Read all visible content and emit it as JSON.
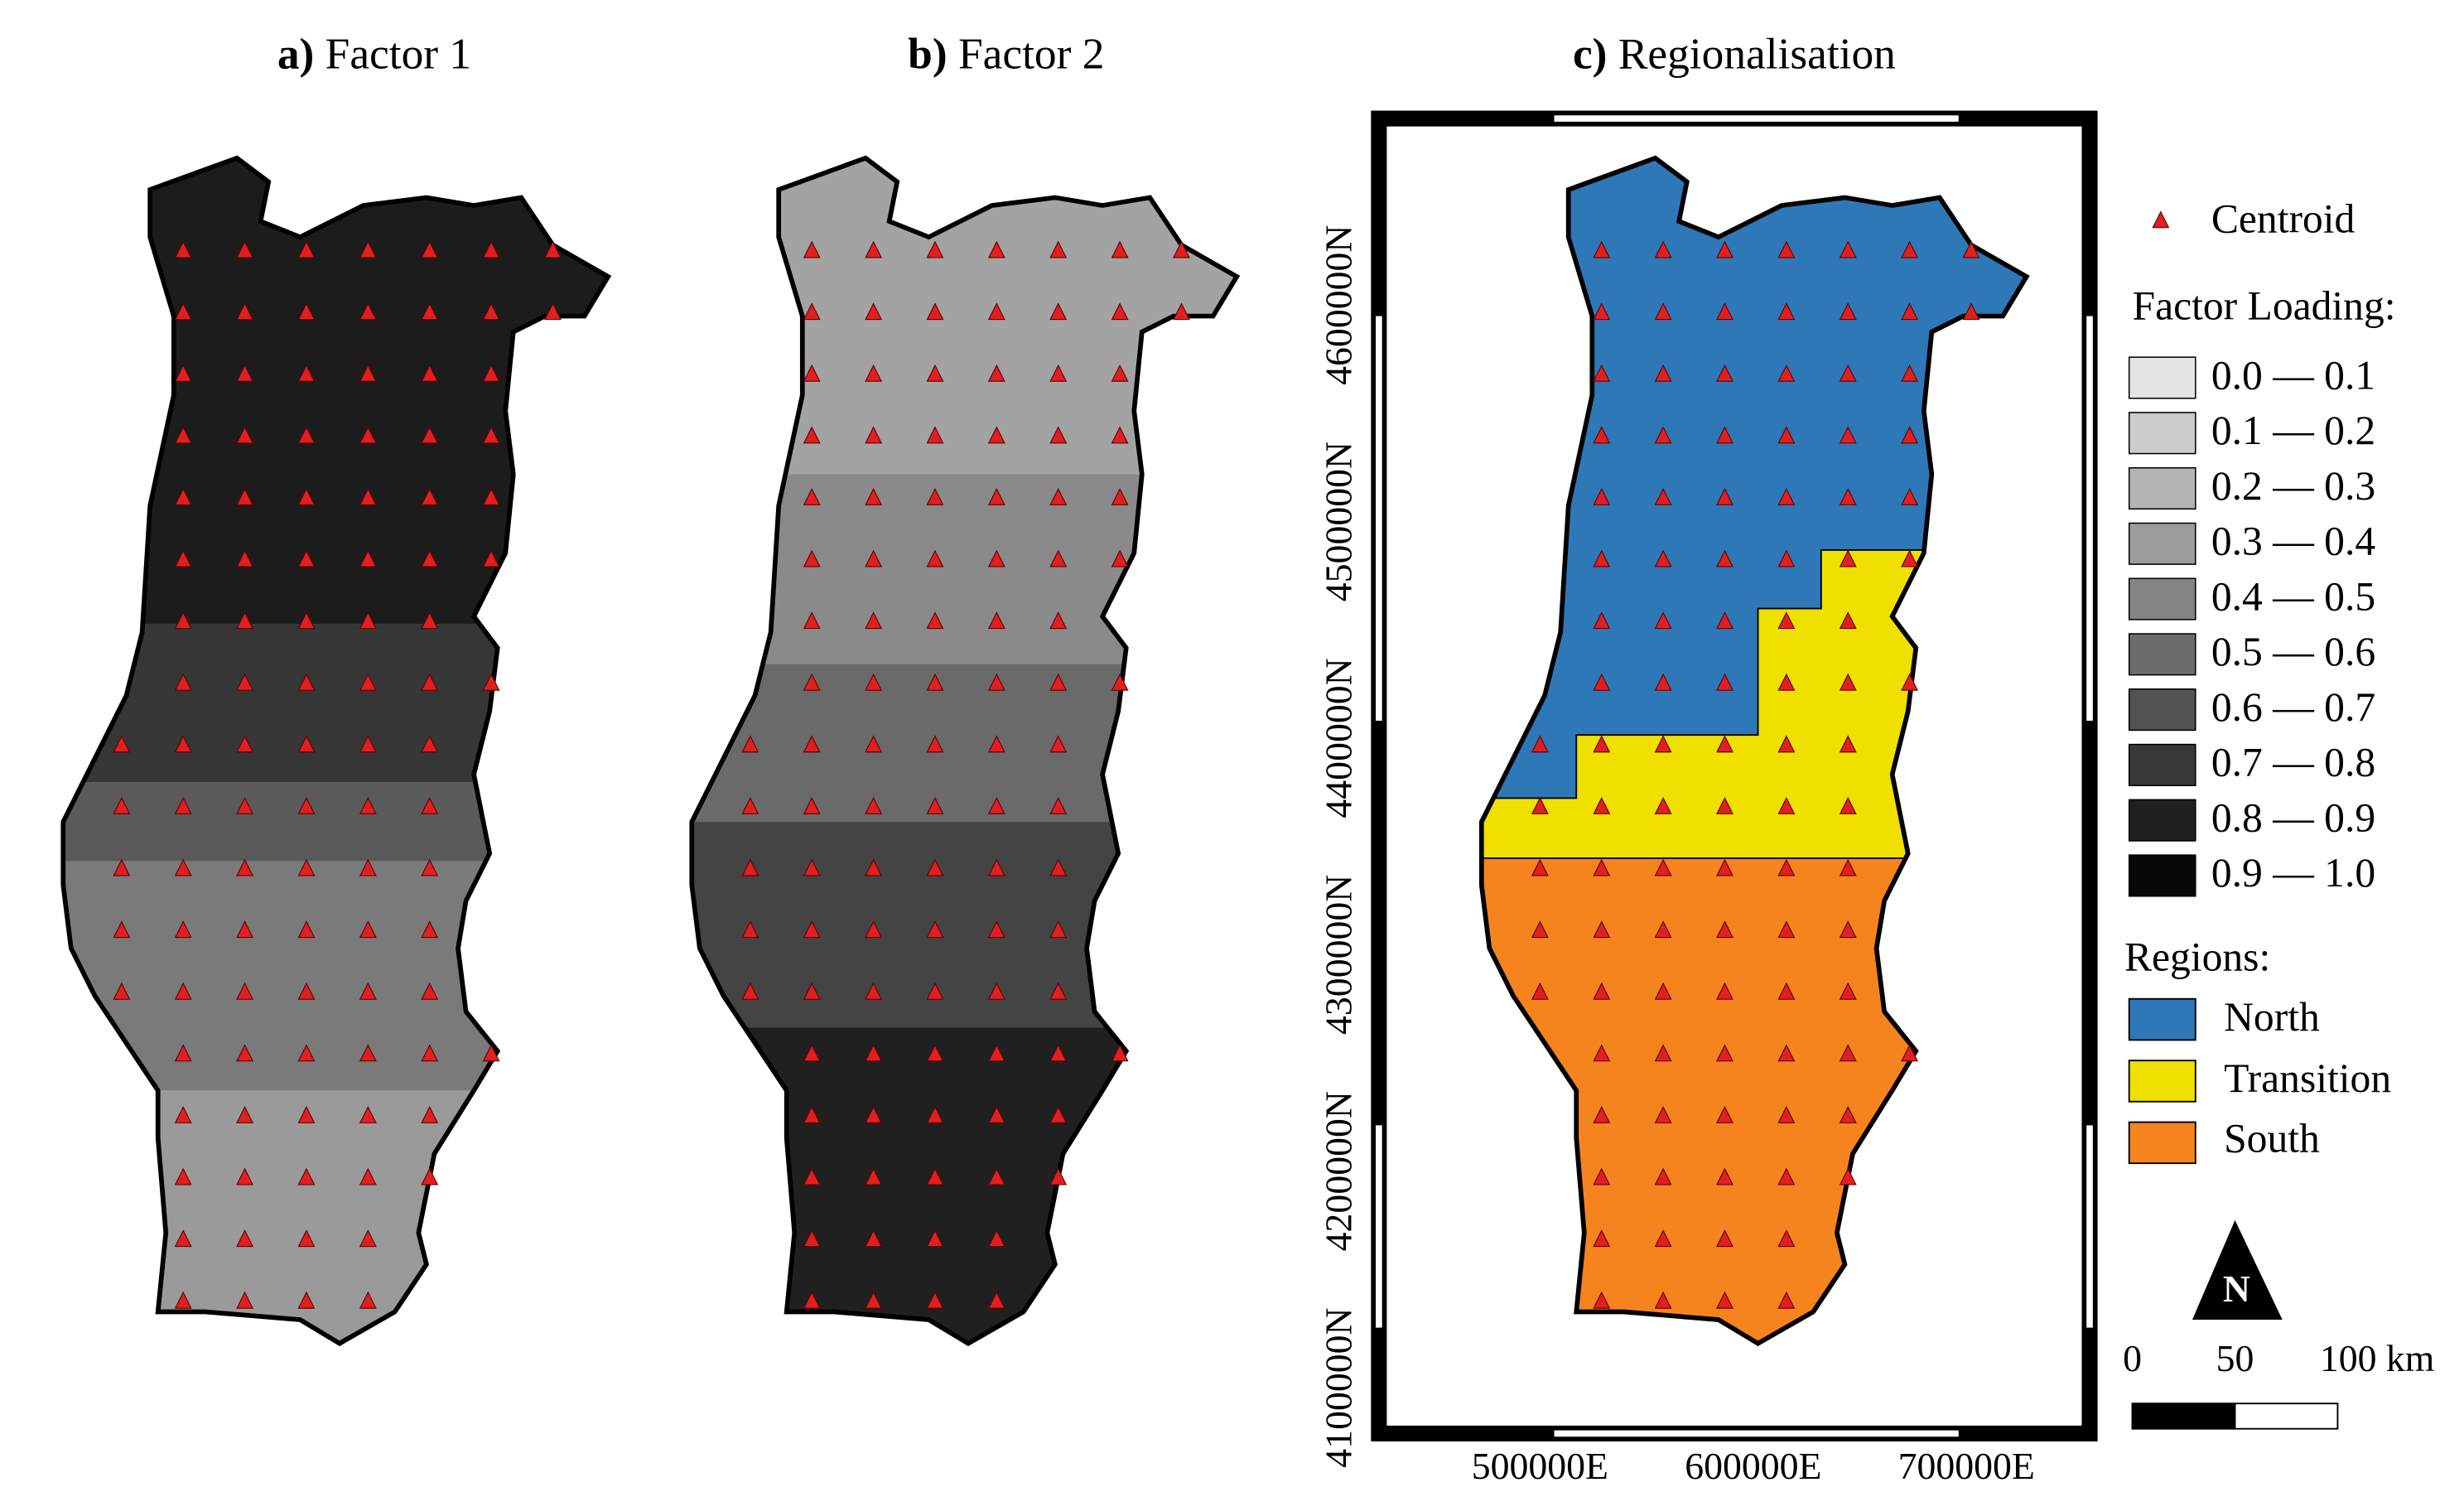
{
  "panels": [
    {
      "label": "a)",
      "title": "Factor 1"
    },
    {
      "label": "b)",
      "title": "Factor 2"
    },
    {
      "label": "c)",
      "title": "Regionalisation"
    }
  ],
  "map_frame": {
    "northing_labels": [
      "4100000N",
      "4200000N",
      "4300000N",
      "4400000N",
      "4500000N",
      "4600000N"
    ],
    "easting_labels": [
      "500000E",
      "600000E",
      "700000E"
    ]
  },
  "legend": {
    "centroid": "Centroid",
    "factor_loading_title": "Factor Loading:",
    "factor_loading_classes": [
      "0.0 — 0.1",
      "0.1 — 0.2",
      "0.2 — 0.3",
      "0.3 — 0.4",
      "0.4 — 0.5",
      "0.5 — 0.6",
      "0.6 — 0.7",
      "0.7 — 0.8",
      "0.8 — 0.9",
      "0.9 — 1.0"
    ],
    "regions_title": "Regions:",
    "regions": [
      "North",
      "Transition",
      "South"
    ]
  },
  "north_arrow": "N",
  "scale_bar": {
    "labels": [
      "0",
      "50",
      "100 km"
    ]
  }
}
